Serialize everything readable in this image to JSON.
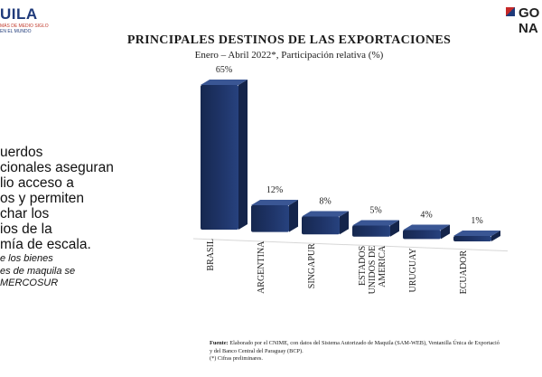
{
  "header": {
    "left_logo": {
      "wordmark": "UILA",
      "tagline_line1": "MÁS DE MEDIO SIGLO",
      "tagline_line2": "EN EL MUNDO"
    },
    "right_logo": {
      "line1": "GO",
      "line2": "NA"
    }
  },
  "side_text": {
    "lines": [
      "uerdos",
      "cionales aseguran",
      "lio acceso a",
      "os y permiten",
      "char los",
      "ios de la",
      "mía de escala."
    ],
    "note_lines": [
      "e los bienes",
      "es de maquila se",
      "MERCOSUR"
    ]
  },
  "chart_data": {
    "type": "bar",
    "title": "PRINCIPALES DESTINOS  DE LAS EXPORTACIONES",
    "subtitle": "Enero – Abril 2022*, Participación relativa (%)",
    "categories": [
      "BRASIL",
      "ARGENTINA",
      "SINGAPUR",
      "ESTADOS UNIDOS DE AMERICA",
      "URUGUAY",
      "ECUADOR"
    ],
    "category_lines": [
      [
        "BRASIL"
      ],
      [
        "ARGENTINA"
      ],
      [
        "SINGAPUR"
      ],
      [
        "ESTADOS",
        "UNIDOS DE",
        "AMERICA"
      ],
      [
        "URUGUAY"
      ],
      [
        "ECUADOR"
      ]
    ],
    "values": [
      65,
      12,
      8,
      5,
      4,
      1
    ],
    "data_labels": [
      "65%",
      "12%",
      "8%",
      "5%",
      "4%",
      "1%"
    ],
    "style": "3d",
    "bar_color": "#1e3366",
    "grid": false,
    "legend": "none"
  },
  "source": {
    "label": "Fuente:",
    "text_line1": "Elaborado por el CNIME, con datos del Sistema Autorizado de Maquila (SAM-WEB), Ventanilla Única de Exportació",
    "text_line2": "y del Banco Central del Paraguay (BCP).",
    "footnote": "(*) Cifras preliminares."
  }
}
